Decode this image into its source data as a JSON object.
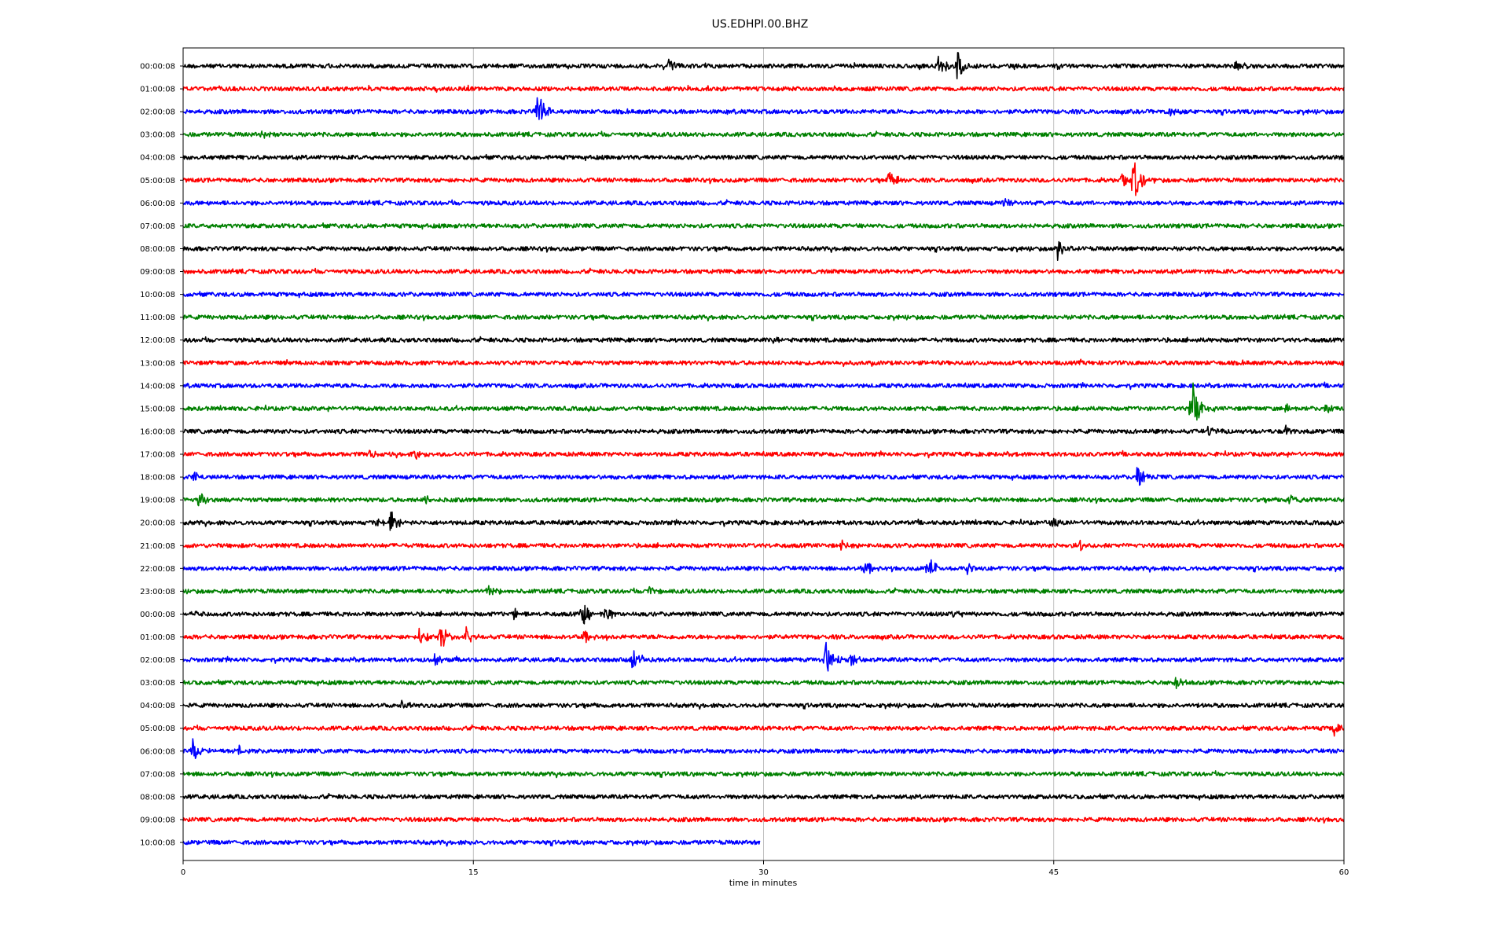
{
  "chart_data": {
    "type": "line",
    "title": "US.EDHPI.00.BHZ",
    "xlabel": "time in minutes",
    "ylabel": "",
    "xlim": [
      0,
      60
    ],
    "x_ticks": [
      "0",
      "15",
      "30",
      "45",
      "60"
    ],
    "grid": "vertical lines at 15 minute intervals",
    "colors": [
      "#000000",
      "#ff0000",
      "#0000ff",
      "#008000"
    ],
    "color_cycle_note": "black, red, blue, green repeating per trace",
    "traces": [
      {
        "label": "00:00:08",
        "color": "#000000",
        "end_minute": 60,
        "events": [
          {
            "t": 25.1,
            "amp": 0.55
          },
          {
            "t": 39.0,
            "amp": 0.75
          },
          {
            "t": 40.0,
            "amp": 1.0
          },
          {
            "t": 54.4,
            "amp": 0.35
          }
        ]
      },
      {
        "label": "01:00:08",
        "color": "#ff0000",
        "end_minute": 60,
        "events": []
      },
      {
        "label": "02:00:08",
        "color": "#0000ff",
        "end_minute": 60,
        "events": [
          {
            "t": 18.3,
            "amp": 1.3
          },
          {
            "t": 51.0,
            "amp": 0.25
          }
        ]
      },
      {
        "label": "03:00:08",
        "color": "#008000",
        "end_minute": 60,
        "events": [
          {
            "t": 4.1,
            "amp": 0.35
          }
        ]
      },
      {
        "label": "04:00:08",
        "color": "#000000",
        "end_minute": 60,
        "events": []
      },
      {
        "label": "05:00:08",
        "color": "#ff0000",
        "end_minute": 60,
        "events": [
          {
            "t": 36.5,
            "amp": 0.7
          },
          {
            "t": 48.5,
            "amp": 0.6
          },
          {
            "t": 49.1,
            "amp": 1.6
          }
        ]
      },
      {
        "label": "06:00:08",
        "color": "#0000ff",
        "end_minute": 60,
        "events": [
          {
            "t": 42.4,
            "amp": 0.3
          }
        ]
      },
      {
        "label": "07:00:08",
        "color": "#008000",
        "end_minute": 60,
        "events": []
      },
      {
        "label": "08:00:08",
        "color": "#000000",
        "end_minute": 60,
        "events": [
          {
            "t": 45.2,
            "amp": 0.65
          }
        ]
      },
      {
        "label": "09:00:08",
        "color": "#ff0000",
        "end_minute": 60,
        "events": []
      },
      {
        "label": "10:00:08",
        "color": "#0000ff",
        "end_minute": 60,
        "events": []
      },
      {
        "label": "11:00:08",
        "color": "#008000",
        "end_minute": 60,
        "events": []
      },
      {
        "label": "12:00:08",
        "color": "#000000",
        "end_minute": 60,
        "events": [
          {
            "t": 30.5,
            "amp": 0.25
          }
        ]
      },
      {
        "label": "13:00:08",
        "color": "#ff0000",
        "end_minute": 60,
        "events": []
      },
      {
        "label": "14:00:08",
        "color": "#0000ff",
        "end_minute": 60,
        "events": []
      },
      {
        "label": "15:00:08",
        "color": "#008000",
        "end_minute": 60,
        "events": [
          {
            "t": 52.1,
            "amp": 1.9
          },
          {
            "t": 57.0,
            "amp": 0.3
          },
          {
            "t": 59.0,
            "amp": 0.35
          }
        ]
      },
      {
        "label": "16:00:08",
        "color": "#000000",
        "end_minute": 60,
        "events": [
          {
            "t": 53.0,
            "amp": 0.35
          },
          {
            "t": 57.0,
            "amp": 0.3
          }
        ]
      },
      {
        "label": "17:00:08",
        "color": "#ff0000",
        "end_minute": 60,
        "events": [
          {
            "t": 9.6,
            "amp": 0.3
          },
          {
            "t": 12.0,
            "amp": 0.35
          }
        ]
      },
      {
        "label": "18:00:08",
        "color": "#0000ff",
        "end_minute": 60,
        "events": [
          {
            "t": 0.5,
            "amp": 0.3
          },
          {
            "t": 49.3,
            "amp": 0.8
          }
        ]
      },
      {
        "label": "19:00:08",
        "color": "#008000",
        "end_minute": 60,
        "events": [
          {
            "t": 0.8,
            "amp": 0.45
          },
          {
            "t": 12.5,
            "amp": 0.3
          },
          {
            "t": 57.2,
            "amp": 0.35
          }
        ]
      },
      {
        "label": "20:00:08",
        "color": "#000000",
        "end_minute": 60,
        "events": [
          {
            "t": 10.0,
            "amp": 0.3
          },
          {
            "t": 10.7,
            "amp": 0.7
          },
          {
            "t": 44.8,
            "amp": 0.3
          }
        ]
      },
      {
        "label": "21:00:08",
        "color": "#ff0000",
        "end_minute": 60,
        "events": [
          {
            "t": 34.0,
            "amp": 0.4
          },
          {
            "t": 46.3,
            "amp": 0.3
          }
        ]
      },
      {
        "label": "22:00:08",
        "color": "#0000ff",
        "end_minute": 60,
        "events": [
          {
            "t": 35.2,
            "amp": 0.85
          },
          {
            "t": 38.5,
            "amp": 0.75
          },
          {
            "t": 40.5,
            "amp": 0.45
          }
        ]
      },
      {
        "label": "23:00:08",
        "color": "#008000",
        "end_minute": 60,
        "events": [
          {
            "t": 15.8,
            "amp": 0.35
          },
          {
            "t": 24.1,
            "amp": 0.3
          }
        ]
      },
      {
        "label": "00:00:08",
        "color": "#000000",
        "end_minute": 60,
        "events": [
          {
            "t": 0.5,
            "amp": 0.3
          },
          {
            "t": 17.1,
            "amp": 0.35
          },
          {
            "t": 20.6,
            "amp": 0.8
          },
          {
            "t": 21.8,
            "amp": 0.5
          },
          {
            "t": 39.8,
            "amp": 0.3
          }
        ]
      },
      {
        "label": "01:00:08",
        "color": "#ff0000",
        "end_minute": 60,
        "events": [
          {
            "t": 12.2,
            "amp": 0.6
          },
          {
            "t": 13.3,
            "amp": 0.8
          },
          {
            "t": 14.6,
            "amp": 0.5
          },
          {
            "t": 20.7,
            "amp": 0.55
          }
        ]
      },
      {
        "label": "02:00:08",
        "color": "#0000ff",
        "end_minute": 60,
        "events": [
          {
            "t": 13.0,
            "amp": 0.3
          },
          {
            "t": 23.2,
            "amp": 0.75
          },
          {
            "t": 33.2,
            "amp": 1.1
          },
          {
            "t": 34.5,
            "amp": 0.4
          }
        ]
      },
      {
        "label": "03:00:08",
        "color": "#008000",
        "end_minute": 60,
        "events": [
          {
            "t": 51.3,
            "amp": 0.45
          }
        ]
      },
      {
        "label": "04:00:08",
        "color": "#000000",
        "end_minute": 60,
        "events": [
          {
            "t": 11.3,
            "amp": 0.3
          }
        ]
      },
      {
        "label": "05:00:08",
        "color": "#ff0000",
        "end_minute": 60,
        "events": [
          {
            "t": 59.5,
            "amp": 0.55
          }
        ]
      },
      {
        "label": "06:00:08",
        "color": "#0000ff",
        "end_minute": 60,
        "events": [
          {
            "t": 0.5,
            "amp": 0.85
          },
          {
            "t": 2.7,
            "amp": 0.45
          }
        ]
      },
      {
        "label": "07:00:08",
        "color": "#008000",
        "end_minute": 60,
        "events": []
      },
      {
        "label": "08:00:08",
        "color": "#000000",
        "end_minute": 60,
        "events": []
      },
      {
        "label": "09:00:08",
        "color": "#ff0000",
        "end_minute": 60,
        "events": []
      },
      {
        "label": "10:00:08",
        "color": "#0000ff",
        "end_minute": 29.8,
        "events": []
      }
    ]
  }
}
